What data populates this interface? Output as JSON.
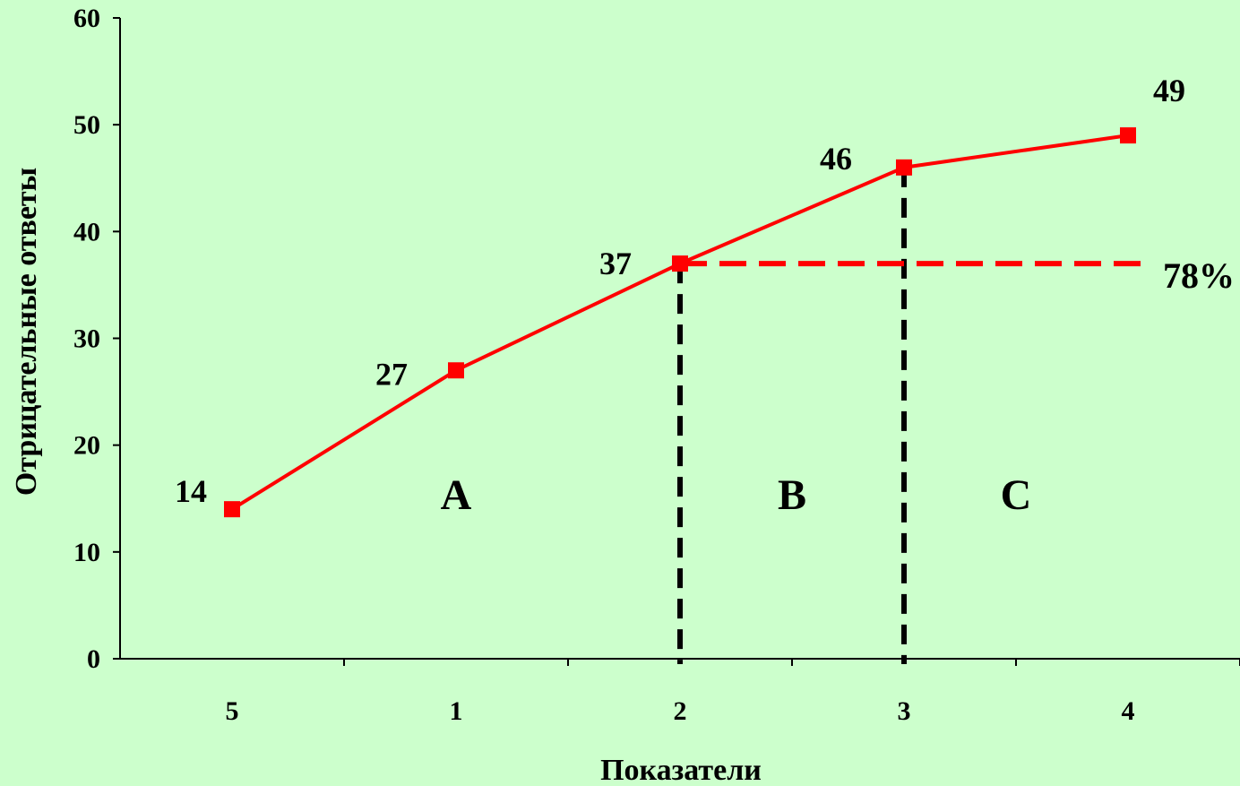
{
  "chart_data": {
    "type": "line",
    "categories": [
      "5",
      "1",
      "2",
      "3",
      "4"
    ],
    "series": [
      {
        "values": [
          14,
          27,
          37,
          46,
          49
        ],
        "color": "#ff0000"
      }
    ],
    "data_labels": [
      "14",
      "27",
      "37",
      "46",
      "49"
    ],
    "xlabel": "Показатели",
    "ylabel": "Отрицательные ответы",
    "ylim": [
      0,
      60
    ],
    "yticks": [
      0,
      10,
      20,
      30,
      40,
      50,
      60
    ],
    "grid": false,
    "legend": "none",
    "zones": [
      {
        "label": "A",
        "from_category": "5",
        "to_category": "2"
      },
      {
        "label": "B",
        "from_category": "2",
        "to_category": "3"
      },
      {
        "label": "C",
        "from_category": "3",
        "to_category": "4"
      }
    ],
    "reference_lines": [
      {
        "orientation": "vertical",
        "at_category": "2",
        "style": "dashed",
        "color": "#000000"
      },
      {
        "orientation": "vertical",
        "at_category": "3",
        "style": "dashed",
        "color": "#000000"
      },
      {
        "orientation": "horizontal",
        "at_value": 37,
        "style": "dashed",
        "color": "#ff0000",
        "label": "78%"
      }
    ],
    "background_color": "#ccffcc"
  }
}
